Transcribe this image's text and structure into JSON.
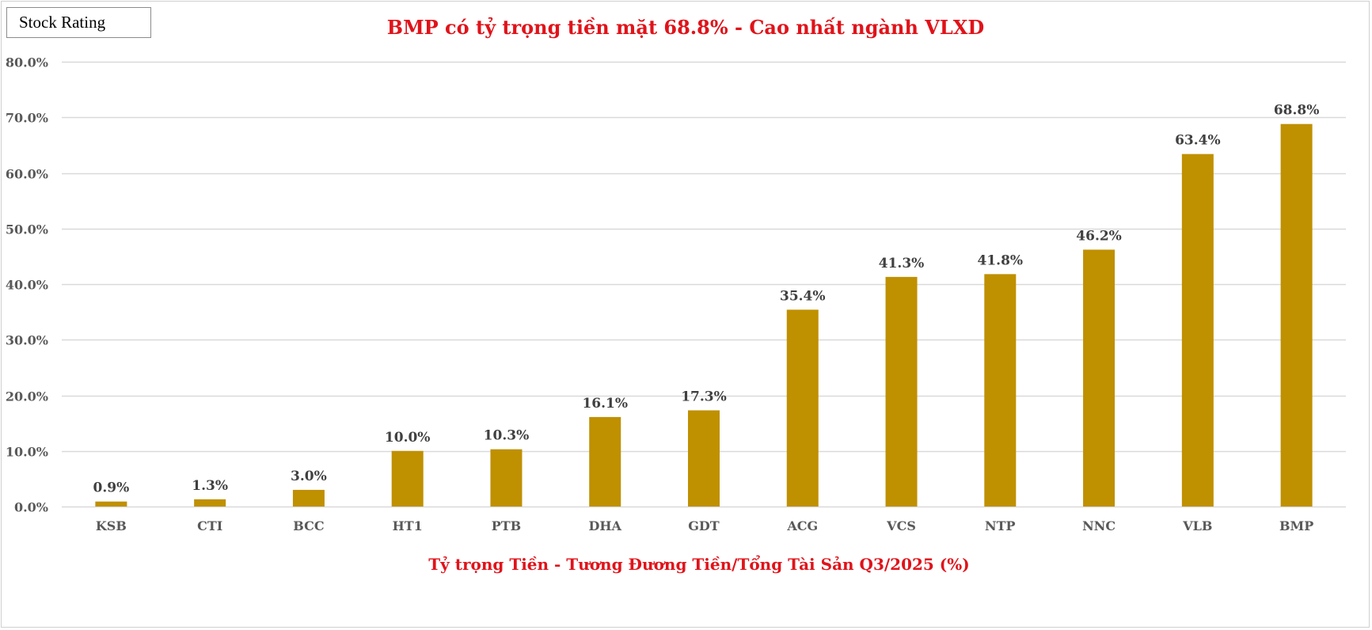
{
  "badge": {
    "label": "Stock Rating"
  },
  "chart_data": {
    "type": "bar",
    "title": "BMP có tỷ trọng tiền mặt 68.8% - Cao nhất ngành VLXD",
    "xlabel": "Tỷ trọng Tiền - Tương Đương Tiền/Tổng Tài Sản Q3/2025 (%)",
    "ylabel": "",
    "categories": [
      "KSB",
      "CTI",
      "BCC",
      "HT1",
      "PTB",
      "DHA",
      "GDT",
      "ACG",
      "VCS",
      "NTP",
      "NNC",
      "VLB",
      "BMP"
    ],
    "values": [
      0.9,
      1.3,
      3.0,
      10.0,
      10.3,
      16.1,
      17.3,
      35.4,
      41.3,
      41.8,
      46.2,
      63.4,
      68.8
    ],
    "data_labels": [
      "0.9%",
      "1.3%",
      "3.0%",
      "10.0%",
      "10.3%",
      "16.1%",
      "17.3%",
      "35.4%",
      "41.3%",
      "41.8%",
      "46.2%",
      "63.4%",
      "68.8%"
    ],
    "ylim": [
      0,
      80
    ],
    "yticks": [
      0,
      10,
      20,
      30,
      40,
      50,
      60,
      70,
      80
    ],
    "ytick_labels": [
      "0.0%",
      "10.0%",
      "20.0%",
      "30.0%",
      "40.0%",
      "50.0%",
      "60.0%",
      "70.0%",
      "80.0%"
    ],
    "grid": true,
    "legend": "none",
    "colors": {
      "bar": "#bf9000",
      "title": "#e0131a",
      "xlabel": "#e0131a",
      "grid": "#d9d9d9",
      "tick_text": "#595959",
      "data_label": "#404040"
    }
  }
}
